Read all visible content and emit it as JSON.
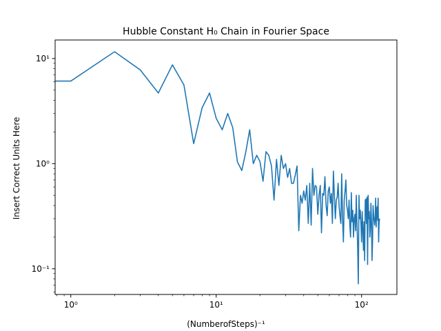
{
  "chart_data": {
    "type": "line",
    "title": "Hubble Constant H₀ Chain in Fourier Space",
    "xlabel": "(NumberofSteps)⁻¹",
    "ylabel": "Insert Correct Units Here",
    "xscale": "log",
    "yscale": "log",
    "xlim": [
      0.78,
      175
    ],
    "ylim": [
      0.057,
      15
    ],
    "x_ticks": [
      1,
      10,
      100
    ],
    "y_ticks": [
      0.1,
      1,
      10
    ],
    "x_tick_labels": [
      "10⁰",
      "10¹",
      "10²"
    ],
    "y_tick_labels": [
      "10⁻¹",
      "10⁰",
      "10¹"
    ],
    "grid": false,
    "line_color": "#1f77b4",
    "series": [
      {
        "values": [
          6.1,
          6.1,
          11.6,
          7.8,
          4.7,
          8.7,
          5.6,
          1.55,
          3.4,
          4.7,
          2.7,
          2.1,
          3.0,
          2.2,
          1.04,
          0.86,
          1.3,
          2.1,
          1.0,
          1.2,
          1.05,
          0.68,
          1.3,
          1.2,
          0.95,
          0.45,
          1.1,
          0.62,
          1.2,
          0.9,
          1.0,
          0.74,
          0.9,
          0.65,
          0.65,
          0.78,
          0.95,
          0.23,
          0.5,
          0.42,
          0.55,
          0.45,
          0.62,
          0.27,
          0.65,
          0.26,
          0.9,
          0.5,
          0.62,
          0.6,
          0.33,
          0.5,
          0.62,
          0.22,
          0.52,
          0.5,
          0.75,
          0.4,
          0.32,
          0.55,
          0.6,
          0.42,
          0.52,
          0.27,
          0.85,
          0.5,
          0.3,
          0.45,
          0.48,
          0.65,
          0.4,
          0.32,
          0.27,
          0.8,
          0.3,
          0.18,
          0.45,
          0.55,
          0.7,
          0.4,
          0.36,
          0.3,
          0.45,
          0.26,
          0.2,
          0.53,
          0.28,
          0.36,
          0.2,
          0.3,
          0.33,
          0.23,
          0.5,
          0.27,
          0.16,
          0.072,
          0.5,
          0.3,
          0.36,
          0.27,
          0.18,
          0.35,
          0.24,
          0.15,
          0.28,
          0.12,
          0.45,
          0.46,
          0.27,
          0.48,
          0.11,
          0.5,
          0.3,
          0.35,
          0.2,
          0.25,
          0.42,
          0.28,
          0.12,
          0.18,
          0.4,
          0.33,
          0.29,
          0.26,
          0.3,
          0.47,
          0.25,
          0.35,
          0.39,
          0.29,
          0.47,
          0.18,
          0.27,
          0.3
        ]
      }
    ]
  }
}
